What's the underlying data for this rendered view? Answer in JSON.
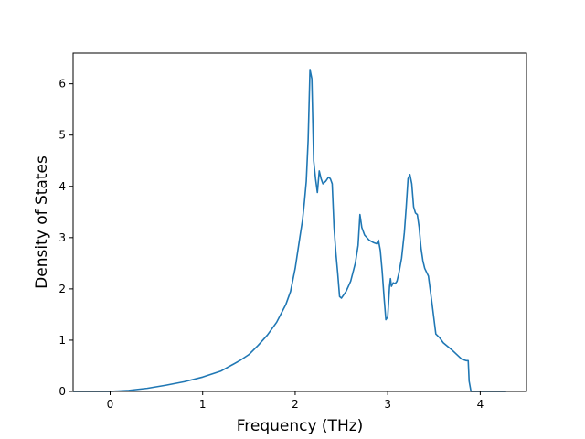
{
  "chart_data": {
    "type": "line",
    "title": "",
    "xlabel": "Frequency (THz)",
    "ylabel": "Density of States",
    "xlim": [
      -0.4,
      4.5
    ],
    "ylim": [
      0,
      6.6
    ],
    "xticks": [
      0,
      1,
      2,
      3,
      4
    ],
    "yticks": [
      0,
      1,
      2,
      3,
      4,
      5,
      6
    ],
    "grid": false,
    "legend": "none",
    "series": [
      {
        "color": "#1f77b4",
        "x": [
          -0.4,
          -0.2,
          0.0,
          0.2,
          0.4,
          0.6,
          0.8,
          1.0,
          1.2,
          1.4,
          1.5,
          1.6,
          1.7,
          1.8,
          1.9,
          1.95,
          2.0,
          2.05,
          2.08,
          2.1,
          2.12,
          2.14,
          2.16,
          2.18,
          2.2,
          2.22,
          2.24,
          2.26,
          2.28,
          2.3,
          2.33,
          2.36,
          2.38,
          2.4,
          2.42,
          2.44,
          2.46,
          2.48,
          2.5,
          2.55,
          2.6,
          2.65,
          2.68,
          2.7,
          2.72,
          2.75,
          2.8,
          2.85,
          2.88,
          2.9,
          2.92,
          2.94,
          2.96,
          2.98,
          3.0,
          3.02,
          3.03,
          3.04,
          3.06,
          3.08,
          3.1,
          3.12,
          3.15,
          3.18,
          3.2,
          3.22,
          3.24,
          3.26,
          3.28,
          3.3,
          3.32,
          3.34,
          3.36,
          3.38,
          3.4,
          3.44,
          3.48,
          3.52,
          3.56,
          3.6,
          3.7,
          3.8,
          3.85,
          3.87,
          3.88,
          3.9,
          4.0,
          4.1,
          4.2,
          4.28
        ],
        "y": [
          0,
          0,
          0,
          0.02,
          0.06,
          0.12,
          0.19,
          0.28,
          0.4,
          0.6,
          0.72,
          0.9,
          1.1,
          1.35,
          1.7,
          1.95,
          2.4,
          3.0,
          3.35,
          3.7,
          4.1,
          4.9,
          6.28,
          6.1,
          4.5,
          4.15,
          3.88,
          4.3,
          4.15,
          4.05,
          4.1,
          4.18,
          4.15,
          4.05,
          3.2,
          2.7,
          2.3,
          1.85,
          1.82,
          1.95,
          2.15,
          2.5,
          2.85,
          3.45,
          3.2,
          3.05,
          2.95,
          2.9,
          2.88,
          2.95,
          2.75,
          2.35,
          1.85,
          1.4,
          1.45,
          2.05,
          2.2,
          2.05,
          2.12,
          2.1,
          2.15,
          2.3,
          2.6,
          3.1,
          3.6,
          4.15,
          4.23,
          4.05,
          3.6,
          3.48,
          3.45,
          3.2,
          2.8,
          2.55,
          2.4,
          2.25,
          1.7,
          1.12,
          1.05,
          0.95,
          0.8,
          0.63,
          0.6,
          0.6,
          0.2,
          0.0,
          0,
          0,
          0,
          0
        ]
      }
    ]
  }
}
